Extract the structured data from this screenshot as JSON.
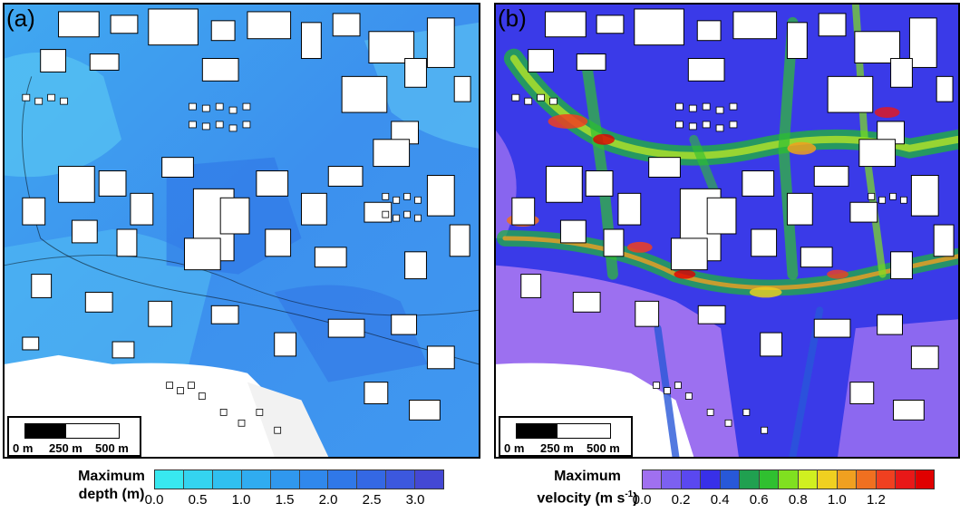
{
  "panels": [
    {
      "label": "(a)",
      "scalebar": {
        "ticks": [
          "0 m",
          "250 m",
          "500 m"
        ]
      },
      "legend": {
        "title_line1": "Maximum",
        "title_line2": "depth (m)",
        "colors": [
          "#38e8f0",
          "#34d4f0",
          "#30c0f0",
          "#30acf0",
          "#3098ee",
          "#3088ec",
          "#3078e8",
          "#3468e4",
          "#3c58de",
          "#4448d4"
        ],
        "tick_labels": [
          "0.0",
          "0.5",
          "1.0",
          "1.5",
          "2.0",
          "2.5",
          "3.0"
        ]
      }
    },
    {
      "label": "(b)",
      "scalebar": {
        "ticks": [
          "0 m",
          "250 m",
          "500 m"
        ]
      },
      "legend": {
        "title_line1": "Maximum",
        "title_line2": "velocity (m s",
        "title_sup": "-1",
        "title_close": ")",
        "colors": [
          "#a070f0",
          "#7c60f0",
          "#5a48f0",
          "#3830e8",
          "#2858d8",
          "#20a050",
          "#30c030",
          "#80e020",
          "#d0f020",
          "#f0d020",
          "#f0a020",
          "#f07020",
          "#f04020",
          "#e81818",
          "#e00000"
        ],
        "tick_labels": [
          "0.0",
          "0.2",
          "0.4",
          "0.6",
          "0.8",
          "1.0",
          "1.2"
        ]
      }
    }
  ]
}
